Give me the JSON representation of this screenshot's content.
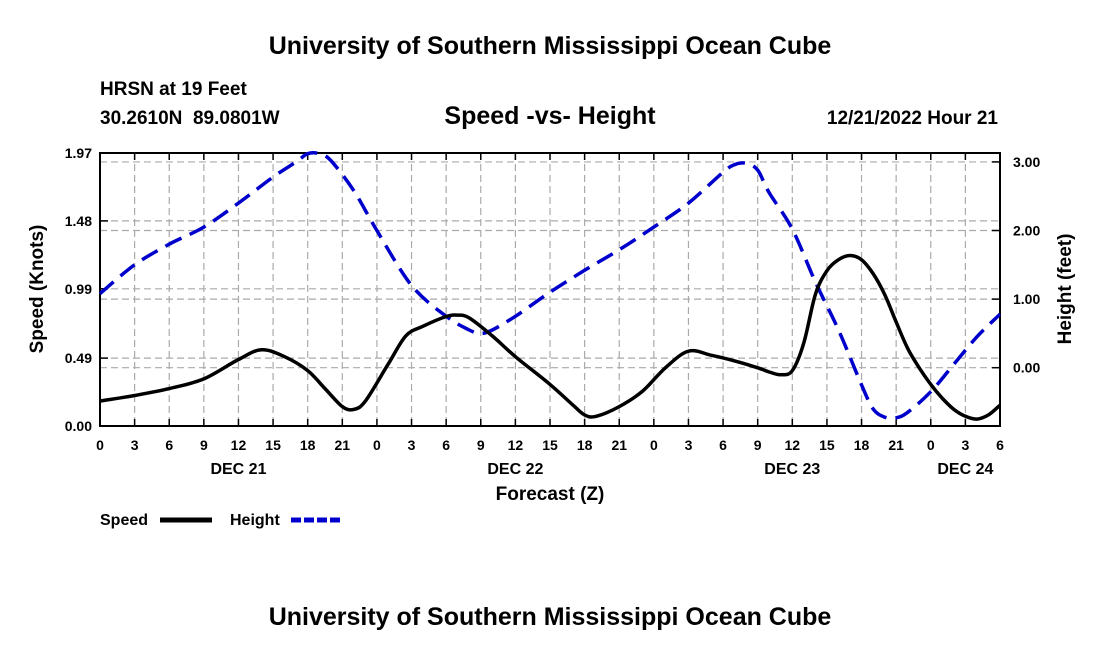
{
  "header": {
    "title": "University of Southern Mississippi Ocean Cube",
    "station": "HRSN at 19 Feet",
    "coords": "30.2610N  89.0801W",
    "chart_title": "Speed -vs- Height",
    "datetime": "12/21/2022 Hour 21"
  },
  "footer": {
    "title": "University of Southern Mississippi Ocean Cube"
  },
  "legend": {
    "speed_label": "Speed",
    "height_label": "Height"
  },
  "colors": {
    "speed": "#000000",
    "height": "#0000cc",
    "grid": "#aaaaaa"
  },
  "chart_data": {
    "type": "line",
    "title": "Speed -vs- Height",
    "xlabel": "Forecast (Z)",
    "ylabel": "Speed (Knots)",
    "y2label": "Height (feet)",
    "x_hours_range": [
      0,
      78
    ],
    "xlim": [
      0,
      78
    ],
    "ylim": [
      0,
      1.97
    ],
    "y2lim": [
      -0.85,
      3.13
    ],
    "x_tick_labels": [
      "0",
      "3",
      "6",
      "9",
      "12",
      "15",
      "18",
      "21",
      "0",
      "3",
      "6",
      "9",
      "12",
      "15",
      "18",
      "21",
      "0",
      "3",
      "6",
      "9",
      "12",
      "15",
      "18",
      "21",
      "0",
      "3",
      "6"
    ],
    "x_day_labels": [
      {
        "hour": 12,
        "label": "DEC 21"
      },
      {
        "hour": 36,
        "label": "DEC 22"
      },
      {
        "hour": 60,
        "label": "DEC 23"
      },
      {
        "hour": 75,
        "label": "DEC 24"
      }
    ],
    "y_ticks": [
      {
        "value": 0.0,
        "label": "0.00"
      },
      {
        "value": 0.49,
        "label": "0.49"
      },
      {
        "value": 0.99,
        "label": "0.99"
      },
      {
        "value": 1.48,
        "label": "1.48"
      },
      {
        "value": 1.97,
        "label": "1.97"
      }
    ],
    "y2_ticks": [
      {
        "value": 0.0,
        "label": "0.00"
      },
      {
        "value": 1.0,
        "label": "1.00"
      },
      {
        "value": 2.0,
        "label": "2.00"
      },
      {
        "value": 3.0,
        "label": "3.00"
      }
    ],
    "grid": true,
    "series": [
      {
        "name": "Speed",
        "axis": "left",
        "style": "solid",
        "points": [
          [
            0,
            0.18
          ],
          [
            3,
            0.22
          ],
          [
            6,
            0.27
          ],
          [
            9,
            0.34
          ],
          [
            12,
            0.48
          ],
          [
            14,
            0.55
          ],
          [
            16,
            0.5
          ],
          [
            18,
            0.4
          ],
          [
            19.5,
            0.27
          ],
          [
            21,
            0.14
          ],
          [
            22,
            0.12
          ],
          [
            23,
            0.18
          ],
          [
            25,
            0.45
          ],
          [
            26.5,
            0.65
          ],
          [
            28,
            0.72
          ],
          [
            30,
            0.79
          ],
          [
            31,
            0.8
          ],
          [
            32,
            0.78
          ],
          [
            34,
            0.65
          ],
          [
            36,
            0.5
          ],
          [
            39,
            0.3
          ],
          [
            41,
            0.15
          ],
          [
            42,
            0.08
          ],
          [
            43,
            0.07
          ],
          [
            45,
            0.14
          ],
          [
            47,
            0.25
          ],
          [
            49,
            0.42
          ],
          [
            51,
            0.54
          ],
          [
            53,
            0.51
          ],
          [
            55,
            0.47
          ],
          [
            57,
            0.42
          ],
          [
            58,
            0.39
          ],
          [
            59,
            0.37
          ],
          [
            60,
            0.4
          ],
          [
            61,
            0.6
          ],
          [
            62,
            0.95
          ],
          [
            63,
            1.12
          ],
          [
            64,
            1.2
          ],
          [
            65,
            1.23
          ],
          [
            66,
            1.2
          ],
          [
            67,
            1.1
          ],
          [
            68,
            0.95
          ],
          [
            69,
            0.75
          ],
          [
            70,
            0.56
          ],
          [
            71,
            0.42
          ],
          [
            72,
            0.3
          ],
          [
            73,
            0.2
          ],
          [
            74,
            0.12
          ],
          [
            75,
            0.07
          ],
          [
            76,
            0.05
          ],
          [
            77,
            0.08
          ],
          [
            78,
            0.15
          ]
        ]
      },
      {
        "name": "Height",
        "axis": "right",
        "style": "dashed",
        "points": [
          [
            0,
            1.08
          ],
          [
            3,
            1.5
          ],
          [
            6,
            1.8
          ],
          [
            9,
            2.05
          ],
          [
            12,
            2.4
          ],
          [
            15,
            2.78
          ],
          [
            17,
            3.0
          ],
          [
            18,
            3.12
          ],
          [
            19,
            3.12
          ],
          [
            20,
            3.02
          ],
          [
            22,
            2.58
          ],
          [
            24,
            2.0
          ],
          [
            27,
            1.2
          ],
          [
            30,
            0.75
          ],
          [
            32,
            0.55
          ],
          [
            33,
            0.5
          ],
          [
            34,
            0.55
          ],
          [
            36,
            0.75
          ],
          [
            39,
            1.1
          ],
          [
            42,
            1.42
          ],
          [
            45,
            1.72
          ],
          [
            48,
            2.05
          ],
          [
            51,
            2.4
          ],
          [
            54,
            2.85
          ],
          [
            55,
            2.96
          ],
          [
            56,
            2.98
          ],
          [
            57,
            2.88
          ],
          [
            58,
            2.55
          ],
          [
            60,
            2.02
          ],
          [
            62,
            1.25
          ],
          [
            64,
            0.55
          ],
          [
            66,
            -0.25
          ],
          [
            67,
            -0.6
          ],
          [
            68,
            -0.72
          ],
          [
            69,
            -0.73
          ],
          [
            70,
            -0.65
          ],
          [
            72,
            -0.35
          ],
          [
            74,
            0.05
          ],
          [
            76,
            0.45
          ],
          [
            78,
            0.78
          ]
        ]
      }
    ]
  }
}
